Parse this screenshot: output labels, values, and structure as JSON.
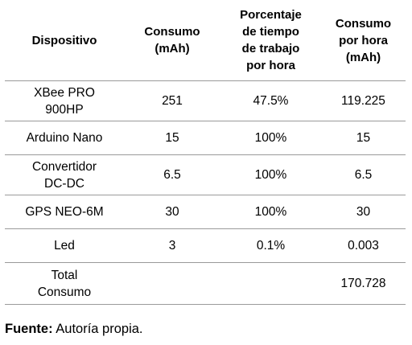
{
  "table": {
    "headers": [
      "Dispositivo",
      "Consumo\n(mAh)",
      "Porcentaje\nde tiempo\nde trabajo\npor hora",
      "Consumo\npor hora\n(mAh)"
    ],
    "rows": [
      [
        "XBee PRO\n900HP",
        "251",
        "47.5%",
        "119.225"
      ],
      [
        "Arduino Nano",
        "15",
        "100%",
        "15"
      ],
      [
        "Convertidor\nDC-DC",
        "6.5",
        "100%",
        "6.5"
      ],
      [
        "GPS NEO-6M",
        "30",
        "100%",
        "30"
      ],
      [
        "Led",
        "3",
        "0.1%",
        "0.003"
      ],
      [
        "Total\nConsumo",
        "",
        "",
        "170.728"
      ]
    ]
  },
  "caption": {
    "label": "Fuente:",
    "text": " Autoría propia."
  }
}
